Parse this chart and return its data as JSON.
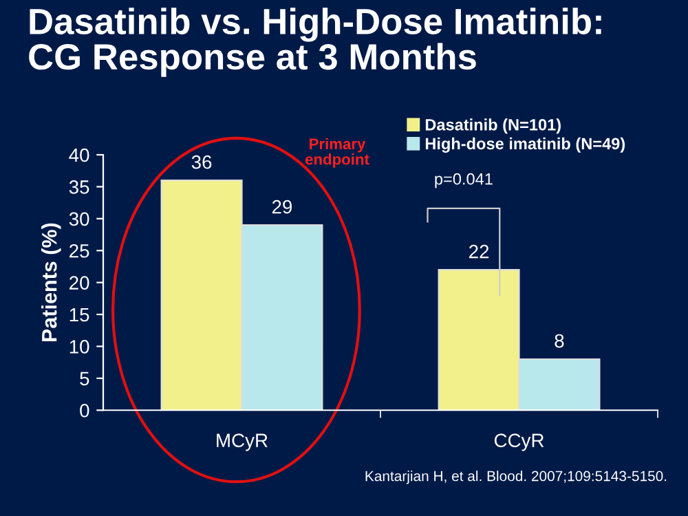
{
  "chart_data": {
    "type": "bar",
    "title": "Dasatinib vs. High-Dose Imatinib:\nCG Response at 3 Months",
    "categories": [
      "MCyR",
      "CCyR"
    ],
    "series": [
      {
        "name": "Dasatinib (N=101)",
        "color": "#f2f08a",
        "values": [
          36,
          22
        ]
      },
      {
        "name": "High-dose imatinib (N=49)",
        "color": "#b8e8ec",
        "values": [
          29,
          8
        ]
      }
    ],
    "ylabel": "Patients (%)",
    "ylim": [
      0,
      40
    ],
    "yticks": [
      0,
      5,
      10,
      15,
      20,
      25,
      30,
      35,
      40
    ],
    "data_labels": true,
    "legend": "top right",
    "grid": false,
    "annotations": [
      "Primary\nendpoint",
      "p=0.041",
      "Kantarjian H, et al. Blood. 2007;109:5143-5150."
    ]
  }
}
